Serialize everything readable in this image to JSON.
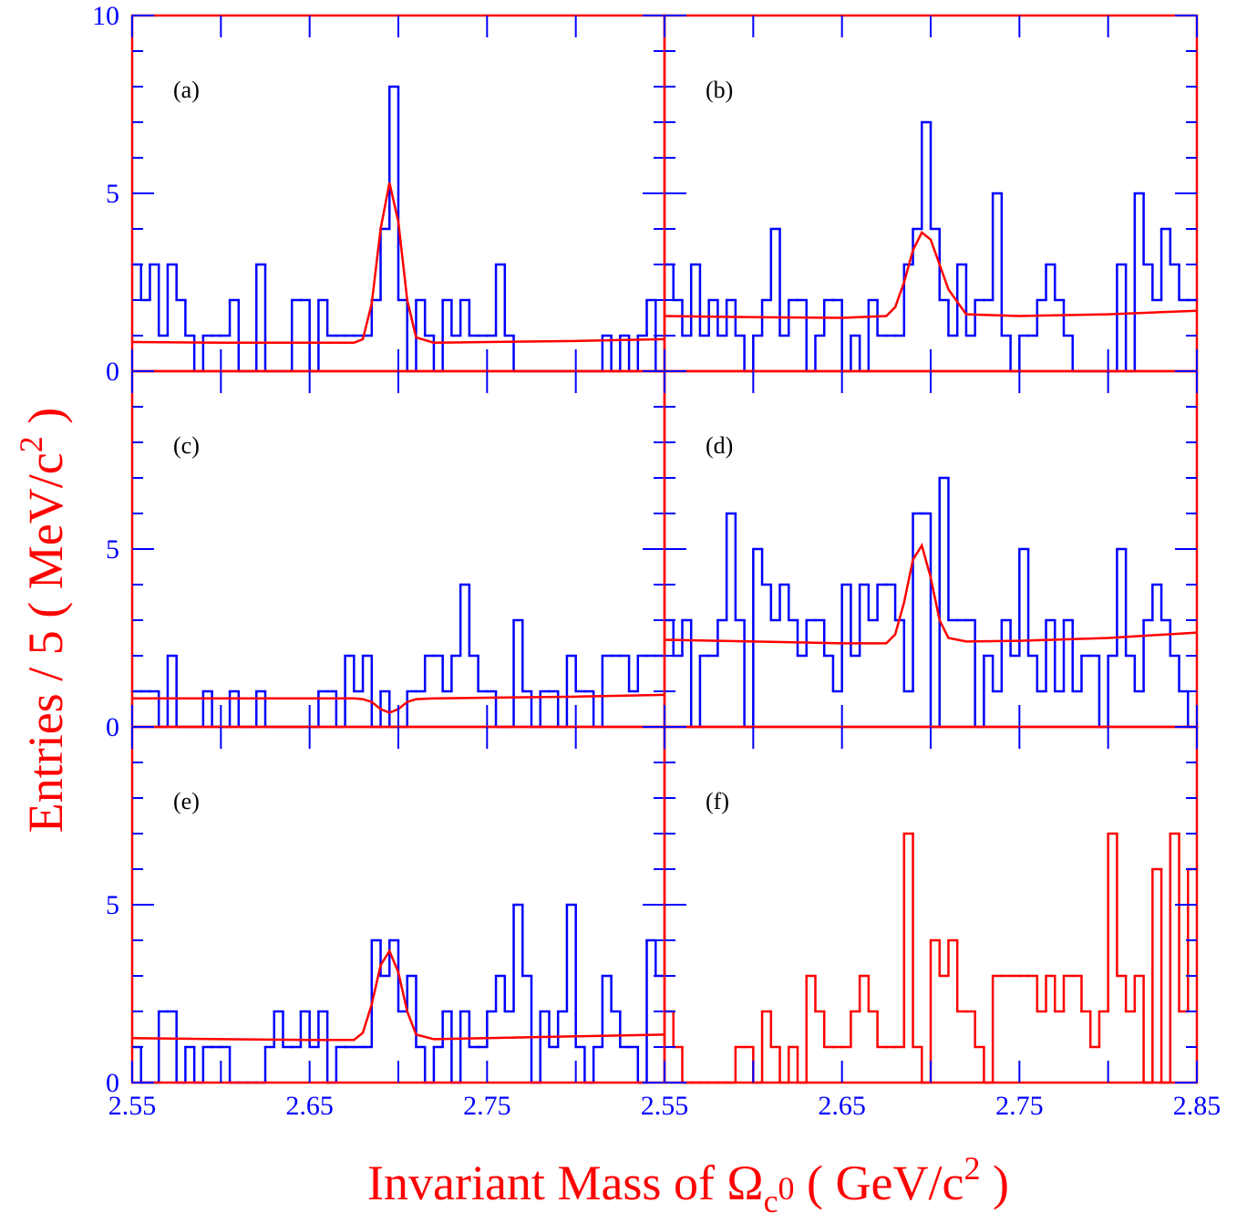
{
  "chart_data": {
    "type": "histogram",
    "xlabel": [
      "Invariant Mass of Ω",
      "c",
      "0",
      " ( GeV/c",
      "2",
      " )"
    ],
    "ylabel": [
      "Entries  /  5  ( MeV/c",
      "2",
      " )"
    ],
    "xlim": [
      2.55,
      2.85
    ],
    "ylim": [
      0,
      10
    ],
    "xticks": [
      2.55,
      2.65,
      2.75,
      2.85
    ],
    "xminor": [
      2.6,
      2.7,
      2.8
    ],
    "yticks": [
      0,
      5,
      10
    ],
    "yminor": [
      1,
      2,
      3,
      4,
      6,
      7,
      8,
      9
    ],
    "frame_color": "#ff0000",
    "fit_color": "#ff0000",
    "tick_label_color": "#0000ff",
    "label_color": "#ff0000",
    "bins": [
      2.55,
      2.555,
      2.56,
      2.565,
      2.57,
      2.575,
      2.58,
      2.585,
      2.59,
      2.595,
      2.6,
      2.605,
      2.61,
      2.615,
      2.62,
      2.625,
      2.63,
      2.635,
      2.64,
      2.645,
      2.65,
      2.655,
      2.66,
      2.665,
      2.67,
      2.675,
      2.68,
      2.685,
      2.69,
      2.695,
      2.7,
      2.705,
      2.71,
      2.715,
      2.72,
      2.725,
      2.73,
      2.735,
      2.74,
      2.745,
      2.75,
      2.755,
      2.76,
      2.765,
      2.77,
      2.775,
      2.78,
      2.785,
      2.79,
      2.795,
      2.8,
      2.805,
      2.81,
      2.815,
      2.82,
      2.825,
      2.83,
      2.835,
      2.84,
      2.845,
      2.85
    ],
    "panels": [
      {
        "label": "(a)",
        "color": "#0000ff",
        "values": [
          3,
          2,
          3,
          1,
          3,
          2,
          1,
          0,
          1,
          1,
          1,
          2,
          0,
          0,
          3,
          0,
          0,
          0,
          2,
          2,
          0,
          2,
          1,
          1,
          1,
          1,
          1,
          2,
          4,
          8,
          2,
          0,
          2,
          1,
          0,
          2,
          1,
          2,
          1,
          1,
          1,
          3,
          1,
          0,
          0,
          0,
          0,
          0,
          0,
          0,
          0,
          0,
          0,
          1,
          0,
          1,
          0,
          1,
          2,
          0
        ],
        "fit": {
          "x": [
            2.55,
            2.6,
            2.65,
            2.675,
            2.68,
            2.685,
            2.69,
            2.695,
            2.7,
            2.705,
            2.71,
            2.72,
            2.75,
            2.8,
            2.85
          ],
          "values": [
            0.82,
            0.8,
            0.8,
            0.8,
            0.9,
            1.9,
            4.0,
            5.3,
            4.2,
            2.0,
            0.95,
            0.8,
            0.82,
            0.85,
            0.9
          ]
        }
      },
      {
        "label": "(b)",
        "color": "#0000ff",
        "values": [
          3,
          2,
          1,
          3,
          1,
          2,
          1,
          2,
          1,
          0,
          1,
          2,
          4,
          1,
          2,
          2,
          0,
          1,
          2,
          2,
          0,
          1,
          0,
          2,
          1,
          1,
          1,
          3,
          4,
          7,
          4,
          2,
          1,
          3,
          1,
          2,
          2,
          5,
          1,
          0,
          1,
          1,
          2,
          3,
          2,
          1,
          0,
          0,
          0,
          0,
          0,
          3,
          0,
          5,
          3,
          2,
          4,
          3,
          2,
          2
        ],
        "fit": {
          "x": [
            2.55,
            2.6,
            2.65,
            2.675,
            2.68,
            2.685,
            2.69,
            2.695,
            2.7,
            2.705,
            2.71,
            2.72,
            2.75,
            2.8,
            2.85
          ],
          "values": [
            1.55,
            1.52,
            1.5,
            1.55,
            1.8,
            2.5,
            3.4,
            3.9,
            3.7,
            3.0,
            2.3,
            1.6,
            1.55,
            1.6,
            1.7
          ]
        }
      },
      {
        "label": "(c)",
        "color": "#0000ff",
        "values": [
          1,
          1,
          1,
          0,
          2,
          0,
          0,
          0,
          1,
          0,
          0,
          1,
          0,
          0,
          1,
          0,
          0,
          0,
          0,
          0,
          0,
          1,
          1,
          0,
          2,
          1,
          2,
          0,
          1,
          0,
          0,
          1,
          1,
          2,
          2,
          1,
          2,
          4,
          2,
          1,
          1,
          0,
          0,
          3,
          1,
          0,
          1,
          1,
          0,
          2,
          1,
          1,
          0,
          2,
          2,
          2,
          1,
          2,
          2,
          2
        ],
        "fit": {
          "x": [
            2.55,
            2.6,
            2.65,
            2.675,
            2.68,
            2.685,
            2.69,
            2.695,
            2.7,
            2.705,
            2.71,
            2.72,
            2.75,
            2.8,
            2.85
          ],
          "values": [
            0.8,
            0.8,
            0.8,
            0.8,
            0.78,
            0.7,
            0.5,
            0.4,
            0.5,
            0.7,
            0.78,
            0.8,
            0.82,
            0.85,
            0.9
          ]
        }
      },
      {
        "label": "(d)",
        "color": "#0000ff",
        "values": [
          3,
          2,
          3,
          0,
          2,
          2,
          3,
          6,
          3,
          0,
          5,
          4,
          3,
          4,
          3,
          2,
          3,
          3,
          2,
          1,
          4,
          2,
          4,
          3,
          4,
          4,
          3,
          1,
          6,
          6,
          0,
          7,
          3,
          3,
          3,
          0,
          2,
          1,
          3,
          2,
          5,
          2,
          1,
          3,
          1,
          3,
          1,
          2,
          2,
          0,
          2,
          5,
          2,
          1,
          3,
          4,
          3,
          2,
          1,
          0
        ],
        "fit": {
          "x": [
            2.55,
            2.6,
            2.65,
            2.675,
            2.68,
            2.685,
            2.69,
            2.695,
            2.7,
            2.705,
            2.71,
            2.72,
            2.75,
            2.8,
            2.85
          ],
          "values": [
            2.45,
            2.4,
            2.35,
            2.35,
            2.6,
            3.5,
            4.7,
            5.1,
            4.2,
            3.0,
            2.5,
            2.4,
            2.42,
            2.5,
            2.65
          ]
        }
      },
      {
        "label": "(e)",
        "color": "#0000ff",
        "values": [
          1,
          0,
          0,
          2,
          2,
          0,
          1,
          0,
          1,
          1,
          1,
          0,
          0,
          0,
          0,
          1,
          2,
          1,
          1,
          2,
          1,
          2,
          0,
          1,
          1,
          1,
          1,
          4,
          3,
          4,
          2,
          3,
          1,
          0,
          1,
          2,
          0,
          2,
          1,
          1,
          2,
          3,
          2,
          5,
          3,
          0,
          2,
          1,
          2,
          5,
          1,
          0,
          1,
          3,
          2,
          1,
          1,
          0,
          4,
          3
        ],
        "fit": {
          "x": [
            2.55,
            2.6,
            2.65,
            2.675,
            2.68,
            2.685,
            2.69,
            2.695,
            2.7,
            2.705,
            2.71,
            2.72,
            2.75,
            2.8,
            2.85
          ],
          "values": [
            1.25,
            1.22,
            1.2,
            1.2,
            1.4,
            2.2,
            3.3,
            3.7,
            3.1,
            2.0,
            1.35,
            1.22,
            1.25,
            1.3,
            1.35
          ]
        }
      },
      {
        "label": "(f)",
        "color": "#ff0000",
        "values": [
          2,
          1,
          0,
          0,
          0,
          0,
          0,
          0,
          1,
          1,
          0,
          2,
          1,
          0,
          1,
          0,
          3,
          2,
          1,
          1,
          1,
          2,
          3,
          2,
          1,
          1,
          1,
          7,
          1,
          0,
          4,
          3,
          4,
          2,
          2,
          1,
          0,
          3,
          3,
          3,
          3,
          3,
          2,
          3,
          2,
          3,
          3,
          2,
          1,
          2,
          7,
          3,
          2,
          3,
          0,
          6,
          0,
          7,
          2,
          6
        ]
      }
    ]
  }
}
